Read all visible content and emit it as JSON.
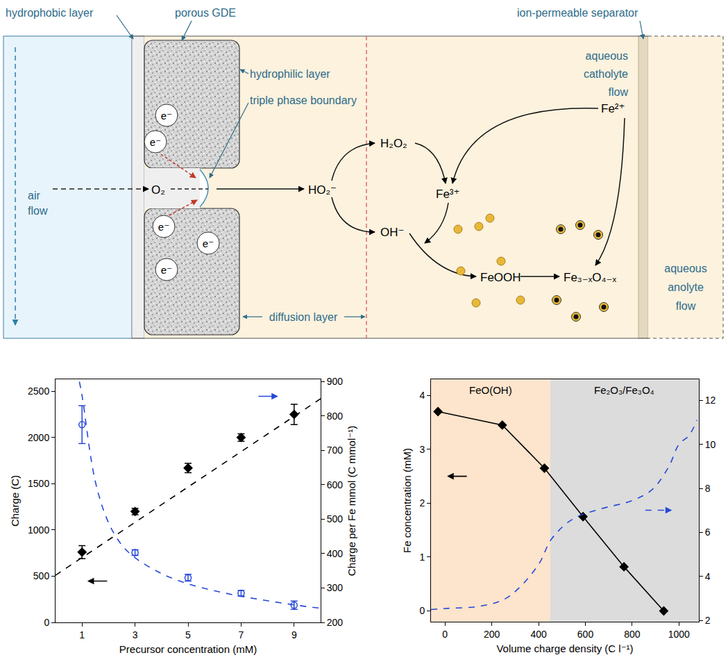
{
  "diagram": {
    "labels": {
      "hydrophobic_layer": "hydrophobic layer",
      "porous_gde": "porous GDE",
      "separator": "ion-permeable separator",
      "hydrophilic_layer": "hydrophilic layer",
      "triple_phase_boundary": "triple phase boundary",
      "diffusion_layer": "diffusion layer",
      "air_flow": [
        "air",
        "flow"
      ],
      "catholyte": [
        "aqueous",
        "catholyte",
        "flow"
      ],
      "anolyte": [
        "aqueous",
        "anolyte",
        "flow"
      ]
    },
    "electrons": [
      "e⁻",
      "e⁻",
      "e⁻",
      "e⁻",
      "e⁻"
    ],
    "species": {
      "o2": "O₂",
      "ho2": "HO₂⁻",
      "h2o2": "H₂O₂",
      "oh": "OH⁻",
      "fe3": "Fe³⁺",
      "fe2": "Fe²⁺",
      "feooh": "FeOOH",
      "fe_oxide": "Fe₃₋ₓO₄₋ₓ"
    }
  },
  "chart_data": [
    {
      "type": "scatter",
      "x_label": "Precursor concentration (mM)",
      "y_label": "Charge (C)",
      "y2_label": "Charge per Fe mmol (C mmol⁻¹)",
      "xlim": [
        0,
        10
      ],
      "xticks": [
        1,
        3,
        5,
        7,
        9
      ],
      "ylim": [
        0,
        2630
      ],
      "yticks": [
        0,
        500,
        1000,
        1500,
        2000,
        2500
      ],
      "y2lim": [
        200,
        907
      ],
      "y2ticks": [
        200,
        300,
        400,
        500,
        600,
        700,
        800,
        900
      ],
      "grid": false,
      "series": [
        {
          "type": "scatter",
          "marker": "diamond",
          "color": "#000000",
          "x": [
            1,
            3,
            5,
            7,
            9
          ],
          "values": [
            760,
            1200,
            1670,
            2000,
            2250
          ],
          "error": [
            70,
            35,
            50,
            40,
            110
          ]
        },
        {
          "type": "line",
          "line_style": "dash",
          "color": "#000000",
          "x": [
            0,
            10
          ],
          "values": [
            510,
            2420
          ]
        },
        {
          "type": "scatter",
          "axis": "y2",
          "marker": "circle-open",
          "color": "#2548d8",
          "x": [
            1,
            3,
            5,
            7,
            9
          ],
          "values": [
            775,
            403,
            330,
            285,
            250
          ],
          "error": [
            55,
            8,
            10,
            8,
            12
          ]
        },
        {
          "type": "line",
          "axis": "y2",
          "line_style": "dash",
          "color": "#2548d8",
          "x": [
            0.9,
            1,
            1.5,
            2,
            2.5,
            3,
            4,
            5,
            6,
            7,
            8,
            9,
            10
          ],
          "values": [
            900,
            860,
            610,
            490,
            425,
            388,
            342,
            312,
            292,
            276,
            263,
            251,
            241
          ]
        }
      ]
    },
    {
      "type": "line",
      "x_label": "Volume charge density (C l⁻¹)",
      "y_label": "Fe concentration (mM)",
      "xlim": [
        -60,
        1085
      ],
      "xticks": [
        0,
        200,
        400,
        600,
        800,
        1000
      ],
      "ylim": [
        -0.2,
        4.3
      ],
      "yticks": [
        0,
        1,
        2,
        3,
        4
      ],
      "y2lim": [
        1.95,
        12.95
      ],
      "y2ticks": [
        2,
        4,
        6,
        8,
        10,
        12
      ],
      "grid": false,
      "regions": [
        {
          "label": "FeO(OH)",
          "from": -60,
          "to": 450,
          "color": "#fde4cc"
        },
        {
          "label": "Fe₂O₃/Fe₃O₄",
          "from": 450,
          "to": 1085,
          "color": "#dcdcdc"
        }
      ],
      "series": [
        {
          "type": "line",
          "marker": "diamond",
          "color": "#000000",
          "x": [
            -30,
            245,
            425,
            590,
            765,
            935
          ],
          "values": [
            3.7,
            3.45,
            2.65,
            1.75,
            0.82,
            0
          ]
        },
        {
          "type": "line",
          "axis": "y2",
          "line_style": "dash",
          "color": "#2548d8",
          "x": [
            -60,
            0,
            148,
            250,
            318,
            403,
            455,
            545,
            659,
            801,
            886,
            957,
            1000,
            1043,
            1077
          ],
          "values": [
            2.5,
            2.55,
            2.65,
            2.95,
            3.5,
            4.6,
            5.7,
            6.6,
            7.05,
            7.45,
            7.95,
            9.0,
            10.0,
            10.4,
            11.1
          ]
        }
      ]
    }
  ]
}
